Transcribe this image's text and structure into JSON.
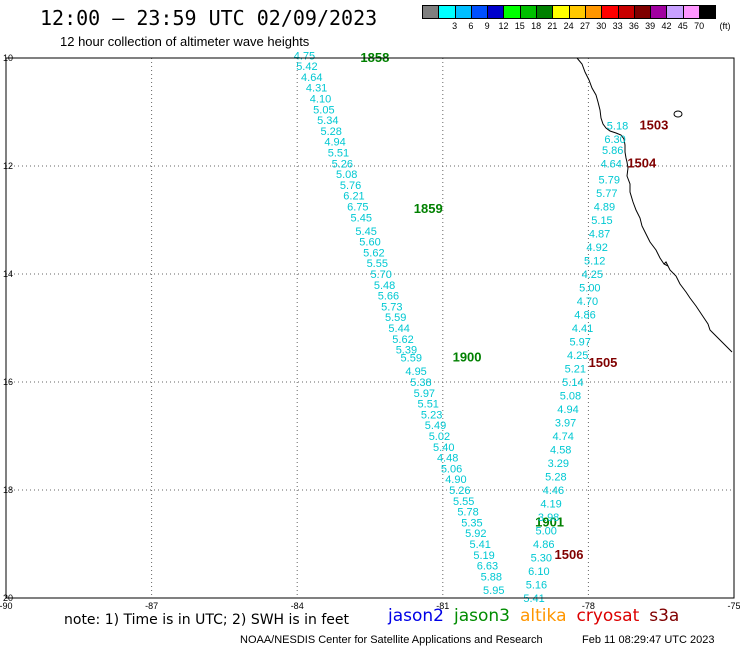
{
  "header": {
    "title": "12:00 – 23:59 UTC 02/09/2023",
    "subtitle": "12 hour collection of altimeter wave heights"
  },
  "legend": {
    "unit": "(ft)",
    "bins": [
      {
        "label": "",
        "color": "#7f7f7f"
      },
      {
        "label": "3",
        "color": "#00ffff"
      },
      {
        "label": "6",
        "color": "#00bfff"
      },
      {
        "label": "9",
        "color": "#0050ff"
      },
      {
        "label": "12",
        "color": "#0000cc"
      },
      {
        "label": "15",
        "color": "#00ff00"
      },
      {
        "label": "18",
        "color": "#00c000"
      },
      {
        "label": "21",
        "color": "#008000"
      },
      {
        "label": "24",
        "color": "#ffff00"
      },
      {
        "label": "27",
        "color": "#ffc800"
      },
      {
        "label": "30",
        "color": "#ff9600"
      },
      {
        "label": "33",
        "color": "#ff0000"
      },
      {
        "label": "36",
        "color": "#c80000"
      },
      {
        "label": "39",
        "color": "#7f0000"
      },
      {
        "label": "42",
        "color": "#a000a0"
      },
      {
        "label": "45",
        "color": "#c8a0ff"
      },
      {
        "label": "70",
        "color": "#ff96ff"
      },
      {
        "label": "",
        "color": "#000000"
      }
    ]
  },
  "axes": {
    "x_ticks": [
      "-90",
      "-87",
      "-84",
      "-81",
      "-78",
      "-75"
    ],
    "y_ticks": [
      "10",
      "12",
      "14",
      "16",
      "18",
      "20"
    ]
  },
  "tracks": [
    {
      "satellite": "jason3",
      "color": "#00c8d2",
      "labels": [
        {
          "text": "1858",
          "lon": -82.4,
          "lat": 10.0,
          "color": "#008000"
        },
        {
          "text": "1859",
          "lon": -81.3,
          "lat": 12.8,
          "color": "#008000"
        },
        {
          "text": "1900",
          "lon": -80.5,
          "lat": 15.55,
          "color": "#008000"
        },
        {
          "text": "1901",
          "lon": -78.8,
          "lat": 18.6,
          "color": "#008000"
        }
      ],
      "points": [
        {
          "v": "4.75",
          "lon": -83.85,
          "lat": 9.95
        },
        {
          "v": "5.42",
          "lon": -83.8,
          "lat": 10.15
        },
        {
          "v": "4.64",
          "lon": -83.7,
          "lat": 10.35
        },
        {
          "v": "4.31",
          "lon": -83.6,
          "lat": 10.55
        },
        {
          "v": "4.10",
          "lon": -83.52,
          "lat": 10.75
        },
        {
          "v": "5.05",
          "lon": -83.45,
          "lat": 10.95
        },
        {
          "v": "5.34",
          "lon": -83.37,
          "lat": 11.15
        },
        {
          "v": "5.28",
          "lon": -83.3,
          "lat": 11.35
        },
        {
          "v": "4.94",
          "lon": -83.22,
          "lat": 11.55
        },
        {
          "v": "5.51",
          "lon": -83.15,
          "lat": 11.75
        },
        {
          "v": "5.26",
          "lon": -83.07,
          "lat": 11.95
        },
        {
          "v": "5.08",
          "lon": -82.98,
          "lat": 12.15
        },
        {
          "v": "5.76",
          "lon": -82.9,
          "lat": 12.35
        },
        {
          "v": "6.21",
          "lon": -82.83,
          "lat": 12.55
        },
        {
          "v": "6.75",
          "lon": -82.75,
          "lat": 12.75
        },
        {
          "v": "5.45",
          "lon": -82.68,
          "lat": 12.95
        },
        {
          "v": "5.45",
          "lon": -82.58,
          "lat": 13.2
        },
        {
          "v": "5.60",
          "lon": -82.5,
          "lat": 13.4
        },
        {
          "v": "5.62",
          "lon": -82.42,
          "lat": 13.6
        },
        {
          "v": "5.55",
          "lon": -82.35,
          "lat": 13.8
        },
        {
          "v": "5.70",
          "lon": -82.27,
          "lat": 14.0
        },
        {
          "v": "5.48",
          "lon": -82.2,
          "lat": 14.2
        },
        {
          "v": "5.66",
          "lon": -82.12,
          "lat": 14.4
        },
        {
          "v": "5.73",
          "lon": -82.05,
          "lat": 14.6
        },
        {
          "v": "5.59",
          "lon": -81.97,
          "lat": 14.8
        },
        {
          "v": "5.44",
          "lon": -81.9,
          "lat": 15.0
        },
        {
          "v": "5.62",
          "lon": -81.82,
          "lat": 15.2
        },
        {
          "v": "5.39",
          "lon": -81.75,
          "lat": 15.4
        },
        {
          "v": "5.59",
          "lon": -81.65,
          "lat": 15.55
        },
        {
          "v": "4.95",
          "lon": -81.55,
          "lat": 15.8
        },
        {
          "v": "5.38",
          "lon": -81.45,
          "lat": 16.0
        },
        {
          "v": "5.97",
          "lon": -81.38,
          "lat": 16.2
        },
        {
          "v": "5.51",
          "lon": -81.3,
          "lat": 16.4
        },
        {
          "v": "5.23",
          "lon": -81.23,
          "lat": 16.6
        },
        {
          "v": "5.49",
          "lon": -81.15,
          "lat": 16.8
        },
        {
          "v": "5.02",
          "lon": -81.07,
          "lat": 17.0
        },
        {
          "v": "5.40",
          "lon": -80.98,
          "lat": 17.2
        },
        {
          "v": "4.48",
          "lon": -80.9,
          "lat": 17.4
        },
        {
          "v": "5.06",
          "lon": -80.82,
          "lat": 17.6
        },
        {
          "v": "4.90",
          "lon": -80.73,
          "lat": 17.8
        },
        {
          "v": "5.26",
          "lon": -80.65,
          "lat": 18.0
        },
        {
          "v": "5.55",
          "lon": -80.57,
          "lat": 18.2
        },
        {
          "v": "5.78",
          "lon": -80.48,
          "lat": 18.4
        },
        {
          "v": "5.35",
          "lon": -80.4,
          "lat": 18.6
        },
        {
          "v": "5.92",
          "lon": -80.32,
          "lat": 18.8
        },
        {
          "v": "5.41",
          "lon": -80.23,
          "lat": 19.0
        },
        {
          "v": "5.19",
          "lon": -80.15,
          "lat": 19.2
        },
        {
          "v": "6.63",
          "lon": -80.08,
          "lat": 19.4
        },
        {
          "v": "5.88",
          "lon": -80.0,
          "lat": 19.6
        },
        {
          "v": "5.95",
          "lon": -79.95,
          "lat": 19.85
        }
      ]
    },
    {
      "satellite": "cryosat",
      "color": "#00c8d2",
      "labels": [
        {
          "text": "1503",
          "lon": -76.65,
          "lat": 11.25,
          "color": "#800000"
        },
        {
          "text": "1504",
          "lon": -76.9,
          "lat": 11.95,
          "color": "#800000"
        },
        {
          "text": "1505",
          "lon": -77.7,
          "lat": 15.65,
          "color": "#800000"
        },
        {
          "text": "1506",
          "lon": -78.4,
          "lat": 19.2,
          "color": "#800000"
        }
      ],
      "points": [
        {
          "v": "5.18",
          "lon": -77.4,
          "lat": 11.25
        },
        {
          "v": "6.30",
          "lon": -77.45,
          "lat": 11.5
        },
        {
          "v": "5.86",
          "lon": -77.5,
          "lat": 11.7
        },
        {
          "v": "4.64",
          "lon": -77.53,
          "lat": 11.95
        },
        {
          "v": "5.79",
          "lon": -77.57,
          "lat": 12.25
        },
        {
          "v": "5.77",
          "lon": -77.62,
          "lat": 12.5
        },
        {
          "v": "4.89",
          "lon": -77.67,
          "lat": 12.75
        },
        {
          "v": "5.15",
          "lon": -77.72,
          "lat": 13.0
        },
        {
          "v": "4.87",
          "lon": -77.77,
          "lat": 13.25
        },
        {
          "v": "4.92",
          "lon": -77.82,
          "lat": 13.5
        },
        {
          "v": "5.12",
          "lon": -77.87,
          "lat": 13.75
        },
        {
          "v": "4.25",
          "lon": -77.92,
          "lat": 14.0
        },
        {
          "v": "5.00",
          "lon": -77.97,
          "lat": 14.25
        },
        {
          "v": "4.70",
          "lon": -78.02,
          "lat": 14.5
        },
        {
          "v": "4.86",
          "lon": -78.07,
          "lat": 14.75
        },
        {
          "v": "4.41",
          "lon": -78.12,
          "lat": 15.0
        },
        {
          "v": "5.97",
          "lon": -78.17,
          "lat": 15.25
        },
        {
          "v": "4.25",
          "lon": -78.22,
          "lat": 15.5
        },
        {
          "v": "5.21",
          "lon": -78.27,
          "lat": 15.75
        },
        {
          "v": "5.14",
          "lon": -78.32,
          "lat": 16.0
        },
        {
          "v": "5.08",
          "lon": -78.37,
          "lat": 16.25
        },
        {
          "v": "4.94",
          "lon": -78.42,
          "lat": 16.5
        },
        {
          "v": "3.97",
          "lon": -78.47,
          "lat": 16.75
        },
        {
          "v": "4.74",
          "lon": -78.52,
          "lat": 17.0
        },
        {
          "v": "4.58",
          "lon": -78.57,
          "lat": 17.25
        },
        {
          "v": "3.29",
          "lon": -78.62,
          "lat": 17.5
        },
        {
          "v": "5.28",
          "lon": -78.67,
          "lat": 17.75
        },
        {
          "v": "4.46",
          "lon": -78.72,
          "lat": 18.0
        },
        {
          "v": "4.19",
          "lon": -78.77,
          "lat": 18.25
        },
        {
          "v": "3.98",
          "lon": -78.82,
          "lat": 18.5
        },
        {
          "v": "5.00",
          "lon": -78.87,
          "lat": 18.75
        },
        {
          "v": "4.86",
          "lon": -78.92,
          "lat": 19.0
        },
        {
          "v": "5.30",
          "lon": -78.97,
          "lat": 19.25
        },
        {
          "v": "6.10",
          "lon": -79.02,
          "lat": 19.5
        },
        {
          "v": "5.16",
          "lon": -79.07,
          "lat": 19.75
        },
        {
          "v": "5.41",
          "lon": -79.12,
          "lat": 20.0
        }
      ]
    }
  ],
  "footer": {
    "note": "note: 1) Time is in UTC; 2) SWH is in feet",
    "satellites": [
      {
        "name": "jason2",
        "color": "#0000e6"
      },
      {
        "name": "jason3",
        "color": "#008c00"
      },
      {
        "name": "altika",
        "color": "#ff9600"
      },
      {
        "name": "cryosat",
        "color": "#dc0000"
      },
      {
        "name": "s3a",
        "color": "#800000"
      }
    ],
    "credit": "NOAA/NESDIS Center for Satellite Applications and Research",
    "datestamp": "Feb 11 08:29:47 UTC 2023"
  }
}
